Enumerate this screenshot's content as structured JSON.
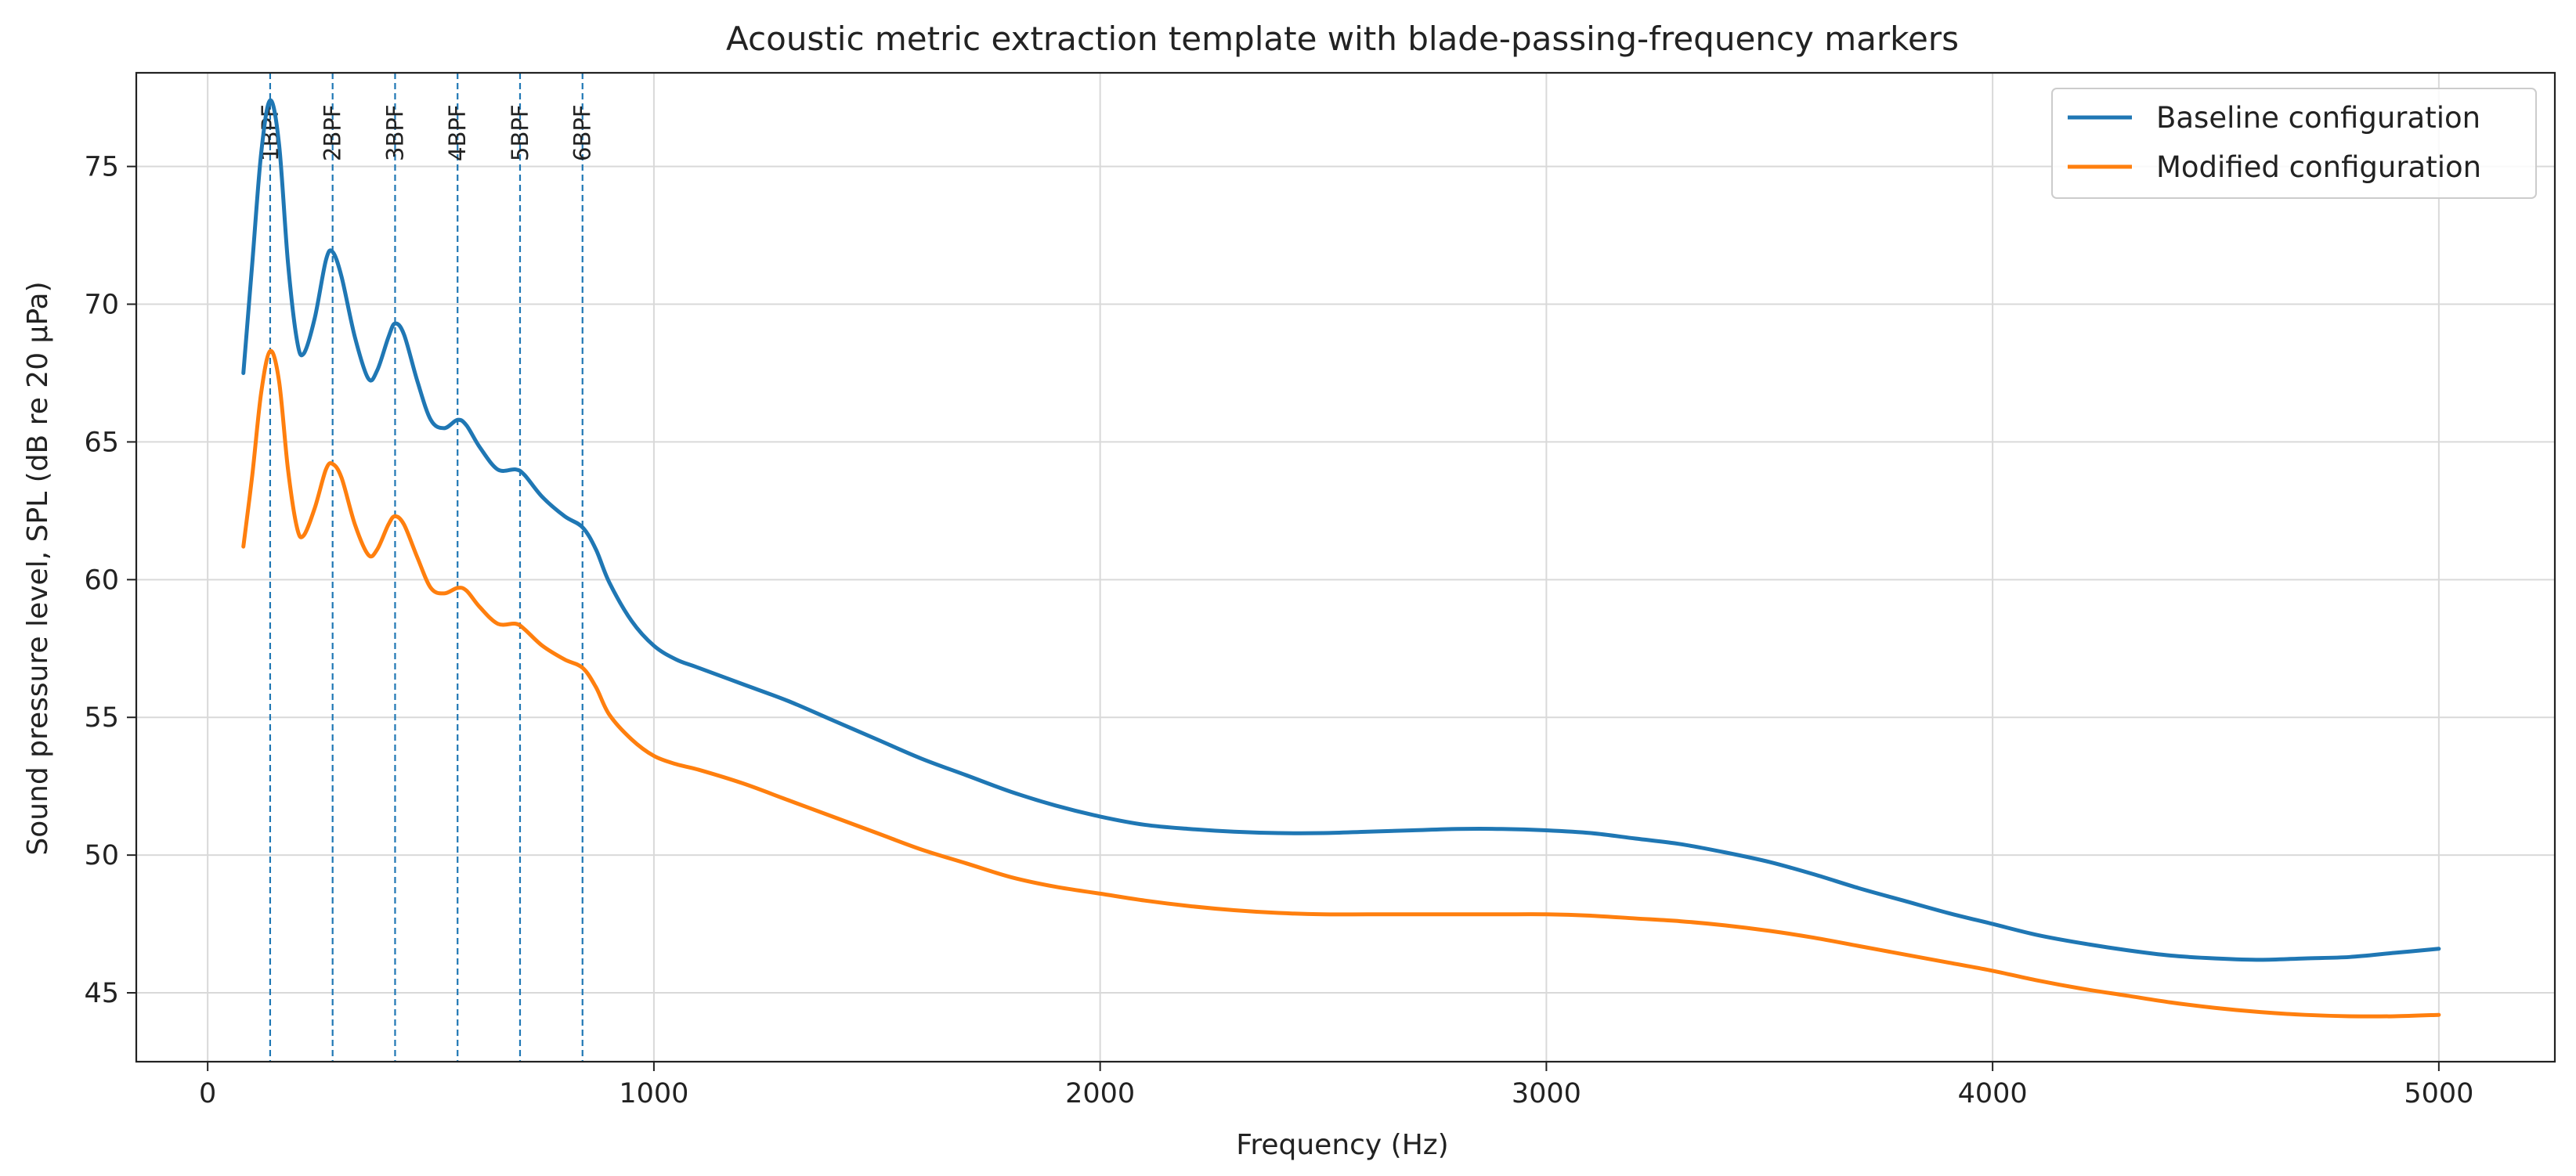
{
  "chart_data": {
    "type": "line",
    "title": "Acoustic metric extraction template with blade-passing-frequency markers",
    "xlabel": "Frequency (Hz)",
    "ylabel": "Sound pressure level, SPL (dB re 20 μPa)",
    "xlim": [
      -160,
      5260
    ],
    "ylim": [
      42.5,
      78.4
    ],
    "xticks": [
      0,
      1000,
      2000,
      3000,
      4000,
      5000
    ],
    "yticks": [
      45,
      50,
      55,
      60,
      65,
      70,
      75
    ],
    "grid": true,
    "legend_position": "top-right",
    "bpf_markers": [
      {
        "label": "1BPF",
        "x": 140
      },
      {
        "label": "2BPF",
        "x": 280
      },
      {
        "label": "3BPF",
        "x": 420
      },
      {
        "label": "4BPF",
        "x": 560
      },
      {
        "label": "5BPF",
        "x": 700
      },
      {
        "label": "6BPF",
        "x": 840
      }
    ],
    "series": [
      {
        "name": "Baseline configuration",
        "color": "#1f77b4",
        "points": [
          [
            80,
            67.5
          ],
          [
            100,
            71.5
          ],
          [
            120,
            75.5
          ],
          [
            140,
            77.4
          ],
          [
            160,
            75.8
          ],
          [
            180,
            71.5
          ],
          [
            200,
            68.7
          ],
          [
            215,
            68.2
          ],
          [
            240,
            69.5
          ],
          [
            265,
            71.6
          ],
          [
            280,
            71.9
          ],
          [
            300,
            71.0
          ],
          [
            330,
            68.8
          ],
          [
            360,
            67.3
          ],
          [
            380,
            67.6
          ],
          [
            405,
            68.8
          ],
          [
            420,
            69.3
          ],
          [
            440,
            68.9
          ],
          [
            470,
            67.2
          ],
          [
            500,
            65.8
          ],
          [
            530,
            65.5
          ],
          [
            560,
            65.8
          ],
          [
            580,
            65.6
          ],
          [
            610,
            64.8
          ],
          [
            650,
            64.0
          ],
          [
            690,
            64.0
          ],
          [
            710,
            63.8
          ],
          [
            750,
            63.0
          ],
          [
            800,
            62.3
          ],
          [
            840,
            61.9
          ],
          [
            870,
            61.1
          ],
          [
            900,
            59.9
          ],
          [
            950,
            58.5
          ],
          [
            1000,
            57.6
          ],
          [
            1050,
            57.1
          ],
          [
            1100,
            56.8
          ],
          [
            1200,
            56.2
          ],
          [
            1300,
            55.6
          ],
          [
            1400,
            54.9
          ],
          [
            1500,
            54.2
          ],
          [
            1600,
            53.5
          ],
          [
            1700,
            52.9
          ],
          [
            1800,
            52.3
          ],
          [
            1900,
            51.8
          ],
          [
            2000,
            51.4
          ],
          [
            2100,
            51.1
          ],
          [
            2200,
            50.95
          ],
          [
            2300,
            50.85
          ],
          [
            2400,
            50.8
          ],
          [
            2500,
            50.8
          ],
          [
            2600,
            50.85
          ],
          [
            2700,
            50.9
          ],
          [
            2800,
            50.95
          ],
          [
            2900,
            50.95
          ],
          [
            3000,
            50.9
          ],
          [
            3100,
            50.8
          ],
          [
            3200,
            50.6
          ],
          [
            3300,
            50.4
          ],
          [
            3400,
            50.1
          ],
          [
            3500,
            49.75
          ],
          [
            3600,
            49.3
          ],
          [
            3700,
            48.8
          ],
          [
            3800,
            48.35
          ],
          [
            3900,
            47.9
          ],
          [
            4000,
            47.5
          ],
          [
            4100,
            47.1
          ],
          [
            4200,
            46.8
          ],
          [
            4300,
            46.55
          ],
          [
            4400,
            46.35
          ],
          [
            4500,
            46.25
          ],
          [
            4600,
            46.2
          ],
          [
            4700,
            46.25
          ],
          [
            4800,
            46.3
          ],
          [
            4900,
            46.45
          ],
          [
            5000,
            46.6
          ]
        ]
      },
      {
        "name": "Modified configuration",
        "color": "#ff7f0e",
        "points": [
          [
            80,
            61.2
          ],
          [
            100,
            63.8
          ],
          [
            120,
            66.8
          ],
          [
            140,
            68.3
          ],
          [
            160,
            67.2
          ],
          [
            180,
            64.0
          ],
          [
            200,
            61.9
          ],
          [
            215,
            61.6
          ],
          [
            240,
            62.6
          ],
          [
            265,
            64.0
          ],
          [
            280,
            64.2
          ],
          [
            300,
            63.7
          ],
          [
            330,
            62.0
          ],
          [
            360,
            60.9
          ],
          [
            380,
            61.1
          ],
          [
            405,
            62.0
          ],
          [
            420,
            62.3
          ],
          [
            440,
            62.0
          ],
          [
            470,
            60.8
          ],
          [
            500,
            59.7
          ],
          [
            530,
            59.5
          ],
          [
            560,
            59.7
          ],
          [
            580,
            59.6
          ],
          [
            610,
            59.0
          ],
          [
            650,
            58.4
          ],
          [
            690,
            58.4
          ],
          [
            710,
            58.2
          ],
          [
            750,
            57.6
          ],
          [
            800,
            57.1
          ],
          [
            840,
            56.8
          ],
          [
            870,
            56.1
          ],
          [
            900,
            55.1
          ],
          [
            950,
            54.2
          ],
          [
            1000,
            53.6
          ],
          [
            1050,
            53.3
          ],
          [
            1100,
            53.1
          ],
          [
            1200,
            52.6
          ],
          [
            1300,
            52.0
          ],
          [
            1400,
            51.4
          ],
          [
            1500,
            50.8
          ],
          [
            1600,
            50.2
          ],
          [
            1700,
            49.7
          ],
          [
            1800,
            49.2
          ],
          [
            1900,
            48.85
          ],
          [
            2000,
            48.6
          ],
          [
            2100,
            48.35
          ],
          [
            2200,
            48.15
          ],
          [
            2300,
            48.0
          ],
          [
            2400,
            47.9
          ],
          [
            2500,
            47.85
          ],
          [
            2600,
            47.85
          ],
          [
            2700,
            47.85
          ],
          [
            2800,
            47.85
          ],
          [
            2900,
            47.85
          ],
          [
            3000,
            47.85
          ],
          [
            3100,
            47.8
          ],
          [
            3200,
            47.7
          ],
          [
            3300,
            47.6
          ],
          [
            3400,
            47.45
          ],
          [
            3500,
            47.25
          ],
          [
            3600,
            47.0
          ],
          [
            3700,
            46.7
          ],
          [
            3800,
            46.4
          ],
          [
            3900,
            46.1
          ],
          [
            4000,
            45.8
          ],
          [
            4100,
            45.45
          ],
          [
            4200,
            45.15
          ],
          [
            4300,
            44.9
          ],
          [
            4400,
            44.65
          ],
          [
            4500,
            44.45
          ],
          [
            4600,
            44.3
          ],
          [
            4700,
            44.2
          ],
          [
            4800,
            44.15
          ],
          [
            4900,
            44.15
          ],
          [
            5000,
            44.2
          ]
        ]
      }
    ]
  }
}
